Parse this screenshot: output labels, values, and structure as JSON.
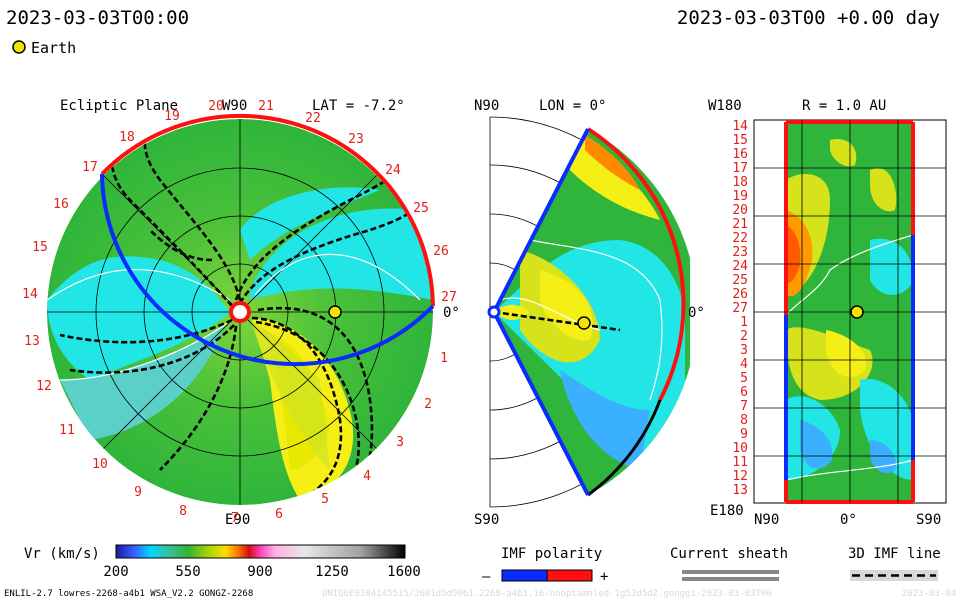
{
  "header": {
    "timestamp_left": "2023-03-03T00:00",
    "timestamp_right": "2023-03-03T00 +0.00 day",
    "legend_earth": "Earth"
  },
  "panels": {
    "ecliptic": {
      "title": "Ecliptic Plane",
      "top_label": "W90",
      "bottom_label": "E90",
      "right_label": "0°",
      "lat_label": "LAT = -7.2°",
      "carrington_labels": [
        "1",
        "2",
        "3",
        "4",
        "5",
        "6",
        "7",
        "8",
        "9",
        "10",
        "11",
        "12",
        "13",
        "14",
        "15",
        "16",
        "17",
        "18",
        "19",
        "20",
        "21",
        "22",
        "23",
        "24",
        "25",
        "26",
        "27"
      ]
    },
    "meridional": {
      "top_label": "N90",
      "bottom_label": "S90",
      "lon_label": "LON = 0°",
      "right_label": "0°"
    },
    "cylindrical": {
      "top_left_label": "W180",
      "bottom_left_label": "E180",
      "radius_label": "R = 1.0 AU",
      "bottom_axis": [
        "N90",
        "0°",
        "S90"
      ],
      "row_labels": [
        "14",
        "15",
        "16",
        "17",
        "18",
        "19",
        "20",
        "21",
        "22",
        "23",
        "24",
        "25",
        "26",
        "27",
        "1",
        "2",
        "3",
        "4",
        "5",
        "6",
        "7",
        "8",
        "9",
        "10",
        "11",
        "12",
        "13"
      ]
    }
  },
  "colorbar": {
    "label": "Vr (km/s)",
    "ticks": [
      "200",
      "550",
      "900",
      "1250",
      "1600"
    ],
    "range": [
      200,
      1600
    ]
  },
  "legends": {
    "imf_polarity": "IMF polarity",
    "minus": "–",
    "plus": "+",
    "current_sheath": "Current sheath",
    "imf_line": "3D IMF line"
  },
  "footer": {
    "model_info": "ENLIL-2.7 lowres-2268-a4b1 WSA_V2.2 GONGZ-2268",
    "run_id": "UNIQUE0304145515/2681d5d90b1.2268-a4b1.16-nooptamnled-1g53d5d2.gonggi-2023-03-03T00",
    "run_date": "2023-03-04"
  },
  "colors": {
    "polarity_negative": "#0a2bff",
    "polarity_positive": "#ff1010",
    "sheath": "#888888",
    "earth": "#f2e600",
    "background_flow": "#2db52d"
  }
}
